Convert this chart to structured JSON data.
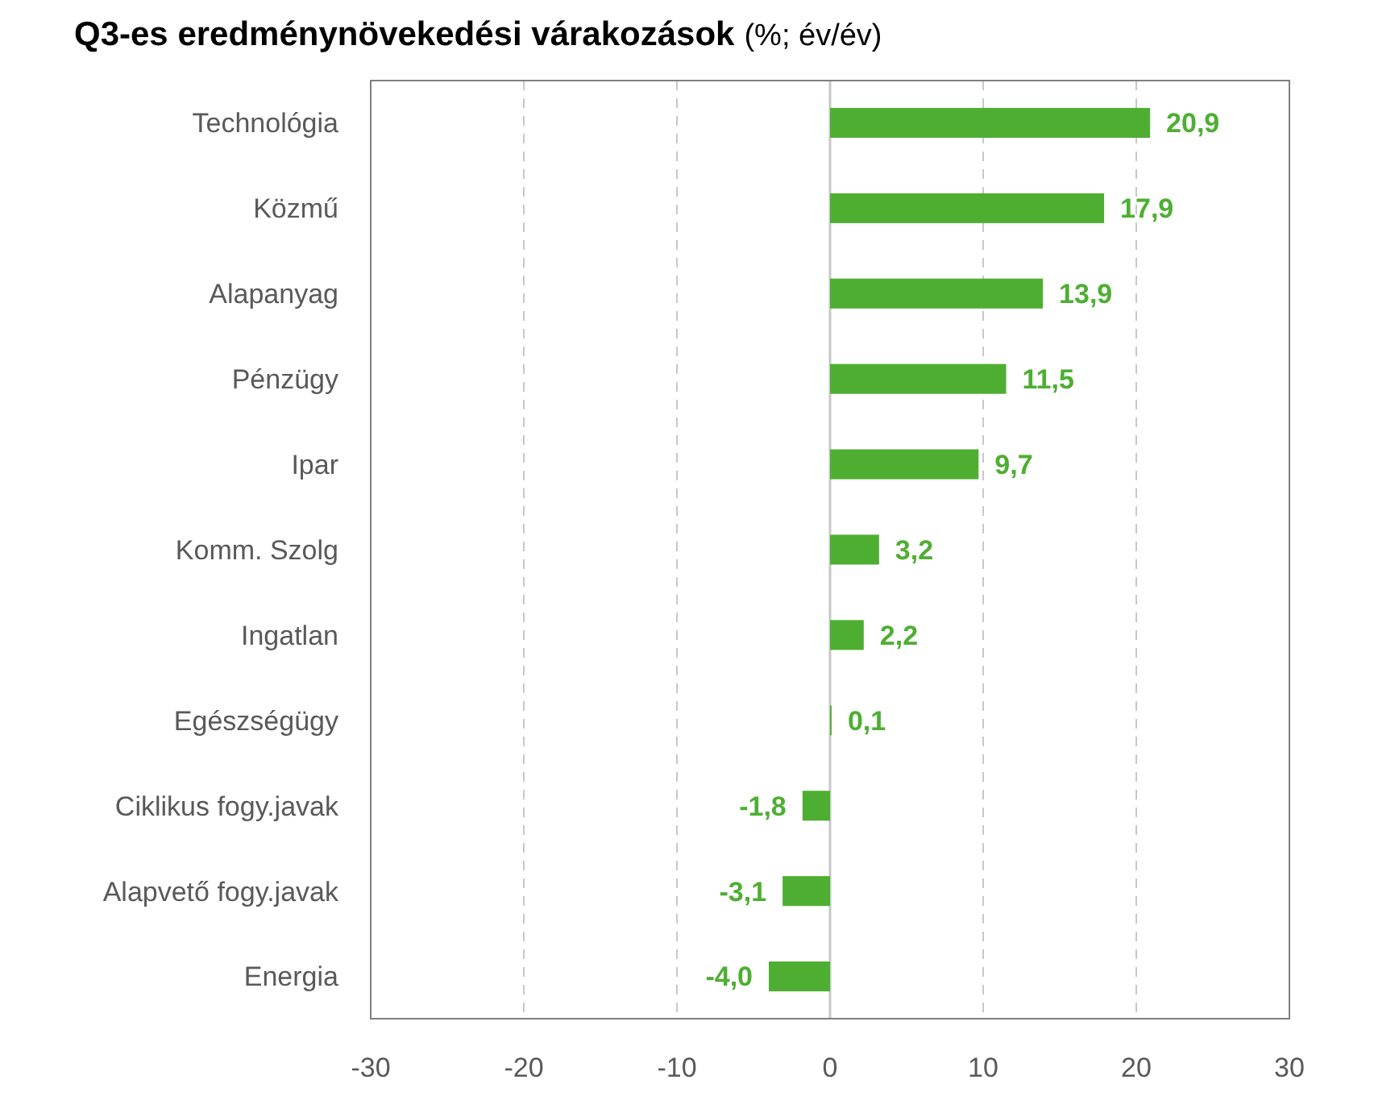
{
  "chart_data": {
    "type": "bar",
    "orientation": "horizontal",
    "title": "Q3-es eredménynövekedési várakozások",
    "subtitle": "(%; év/év)",
    "categories": [
      "Technológia",
      "Közmű",
      "Alapanyag",
      "Pénzügy",
      "Ipar",
      "Komm. Szolg",
      "Ingatlan",
      "Egészségügy",
      "Ciklikus fogy.javak",
      "Alapvető fogy.javak",
      "Energia"
    ],
    "values": [
      20.9,
      17.9,
      13.9,
      11.5,
      9.7,
      3.2,
      2.2,
      0.1,
      -1.8,
      -3.1,
      -4.0
    ],
    "value_labels": [
      "20,9",
      "17,9",
      "13,9",
      "11,5",
      "9,7",
      "3,2",
      "2,2",
      "0,1",
      "-1,8",
      "-3,1",
      "-4,0"
    ],
    "color": "#4eae32",
    "xlim": [
      -30,
      30
    ],
    "xticks": [
      -30,
      -20,
      -10,
      0,
      10,
      20,
      30
    ],
    "grid": "x"
  }
}
